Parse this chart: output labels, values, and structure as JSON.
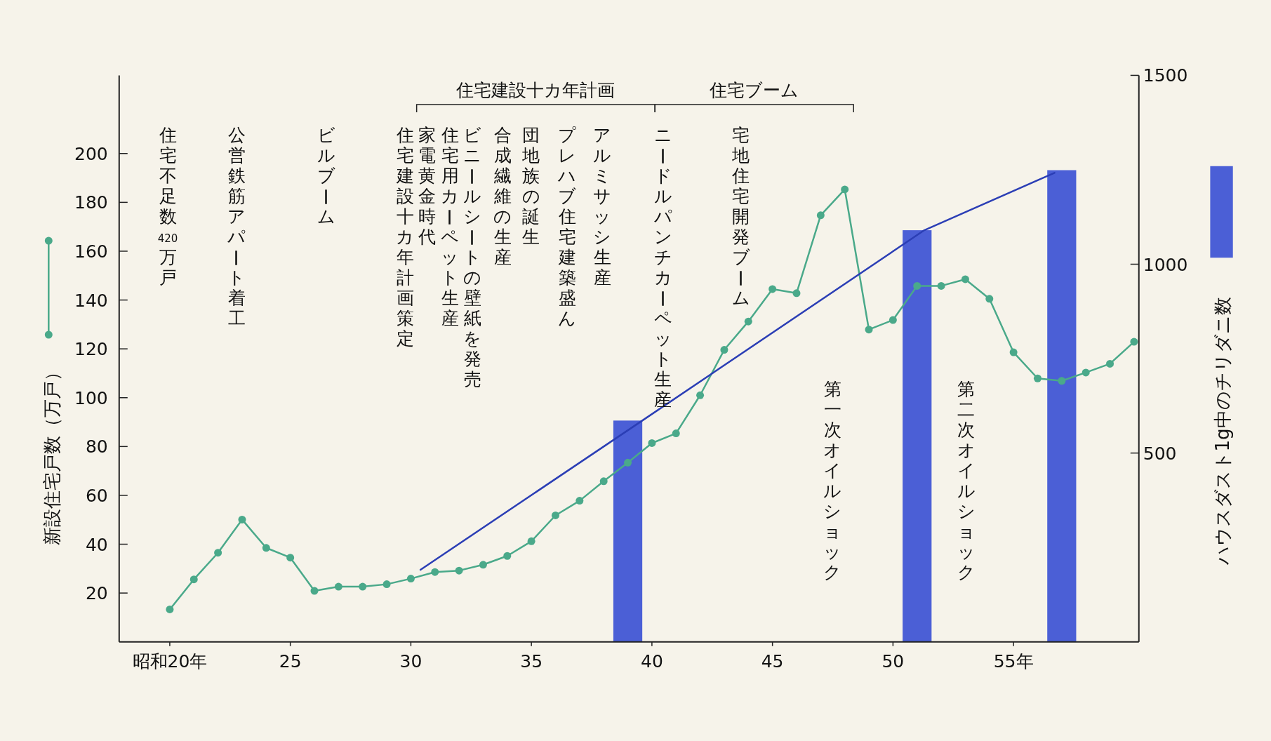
{
  "chart_data": {
    "type": "line",
    "ylabel": "新設住宅戸数（万戸）",
    "y2label": "ハウスダスト1g中のチリダニ数",
    "xlim": [
      17.9,
      60.2
    ],
    "ylim": [
      0,
      232
    ],
    "y2lim": [
      0,
      1500
    ],
    "xticks": [
      {
        "value": 20,
        "label": "昭和20年"
      },
      25,
      30,
      35,
      40,
      45,
      50,
      {
        "value": 55,
        "label": "55年"
      }
    ],
    "yticks": [
      20,
      40,
      60,
      80,
      100,
      120,
      140,
      160,
      180,
      200
    ],
    "y2ticks": [
      500,
      1000,
      1500
    ],
    "series": [
      {
        "type": "line",
        "marker": "circle",
        "color": "#4aa98a",
        "x": [
          20,
          21,
          22,
          23,
          24,
          25,
          26,
          27,
          28,
          29,
          30,
          31,
          32,
          33,
          34,
          35,
          36,
          37,
          38,
          39,
          40,
          41,
          42,
          43,
          44,
          45,
          46,
          47,
          48,
          49,
          50,
          51,
          52,
          53,
          54,
          55,
          56,
          57,
          58,
          59,
          60
        ],
        "values": [
          13.3,
          25.6,
          36.5,
          50.1,
          38.5,
          34.5,
          20.9,
          22.6,
          22.6,
          23.6,
          25.9,
          28.6,
          29.2,
          31.6,
          35.2,
          41.2,
          51.8,
          57.8,
          65.8,
          73.4,
          81.4,
          85.4,
          101,
          119.6,
          131.2,
          144.5,
          142.8,
          174.7,
          185.3,
          127.9,
          131.8,
          145.8,
          145.8,
          148.5,
          140.5,
          118.6,
          107.9,
          106.9,
          110.3,
          113.9,
          122.9
        ]
      },
      {
        "type": "bar",
        "axis": "y2",
        "color": "#4b5fd6",
        "x": [
          39,
          51,
          57
        ],
        "values": [
          586,
          1090,
          1249
        ]
      },
      {
        "type": "line",
        "axis": "y2",
        "marker": "none",
        "color": "#2b3eb5",
        "x": [
          30.4,
          39.6,
          51.3,
          56.7
        ],
        "values": [
          191,
          586,
          1090,
          1242
        ]
      }
    ],
    "annotations": [
      "住宅建設十カ年計画",
      "住宅ブーム",
      "住宅不足数420万戸",
      "公営鉄筋アパート着工",
      "ビルブーム",
      "住宅建設十カ年計画策定",
      "家電黄金時代",
      "住宅用カーペット生産",
      "ビニールシートの壁紙を発売",
      "合成繊維の生産",
      "団地族の誕生",
      "プレハブ住宅建築盛ん",
      "アルミサッシ生産",
      "ニードルパンチカーペット生産",
      "宅地住宅開発ブーム",
      "第一次オイルショック",
      "第二次オイルショック"
    ]
  }
}
